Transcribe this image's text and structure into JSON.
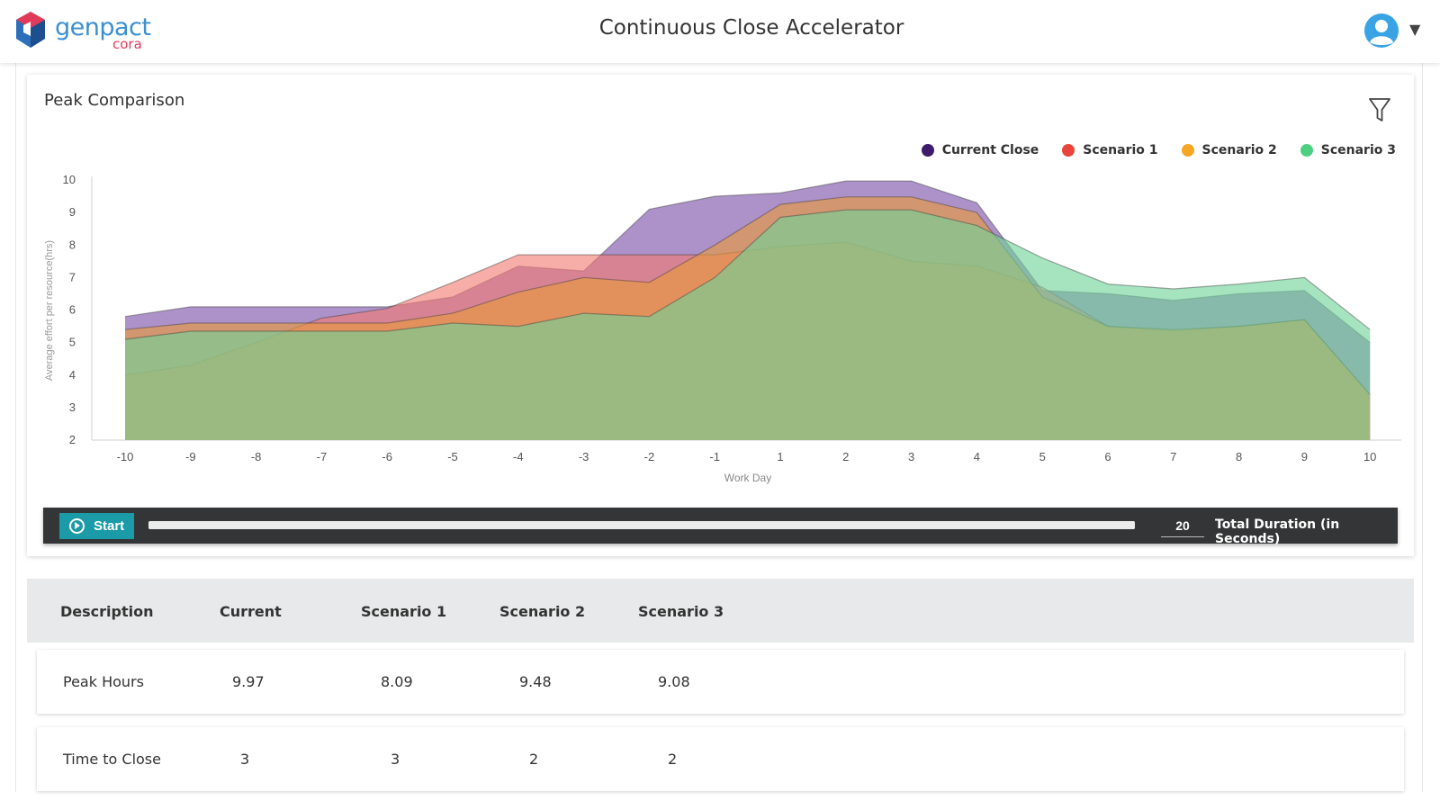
{
  "header": {
    "brand": "genpact",
    "brand_sub": "cora",
    "title": "Continuous Close Accelerator"
  },
  "icons": {
    "logo": "genpact-logo-icon",
    "user": "user-avatar-icon",
    "caret": "caret-down-icon",
    "filter": "filter-icon",
    "play": "play-icon"
  },
  "panel": {
    "title": "Peak Comparison"
  },
  "player": {
    "start_label": "Start",
    "duration_value": "20",
    "duration_label": "Total Duration (in Seconds)",
    "progress": 1.0
  },
  "table": {
    "headers": [
      "Description",
      "Current",
      "Scenario 1",
      "Scenario 2",
      "Scenario 3"
    ],
    "rows": [
      [
        "Peak Hours",
        "9.97",
        "8.09",
        "9.48",
        "9.08"
      ],
      [
        "Time to Close",
        "3",
        "3",
        "2",
        "2"
      ]
    ]
  },
  "colors": {
    "accent": "#1b9aa7",
    "current_close": "#3d1a6b",
    "scenario_1": "#e8453c",
    "scenario_2": "#f5a623",
    "scenario_3": "#4cd080"
  },
  "chart_data": {
    "type": "area",
    "title": "",
    "xlabel": "Work Day",
    "ylabel": "Average effort per resource(hrs)",
    "categories": [
      "-10",
      "-9",
      "-8",
      "-7",
      "-6",
      "-5",
      "-4",
      "-3",
      "-2",
      "-1",
      "1",
      "2",
      "3",
      "4",
      "5",
      "6",
      "7",
      "8",
      "9",
      "10"
    ],
    "ylim": [
      2,
      10
    ],
    "yticks": [
      2,
      3,
      4,
      5,
      6,
      7,
      8,
      9,
      10
    ],
    "legend_position": "top-right",
    "grid": false,
    "series": [
      {
        "name": "Current Close",
        "color": "#7b4fa8",
        "values": [
          5.8,
          6.1,
          6.1,
          6.1,
          6.1,
          6.4,
          7.35,
          7.2,
          9.1,
          9.5,
          9.6,
          9.97,
          9.97,
          9.3,
          6.6,
          6.5,
          6.3,
          6.5,
          6.6,
          5.0
        ]
      },
      {
        "name": "Scenario 1",
        "color": "#f27b73",
        "values": [
          4.0,
          4.3,
          5.0,
          5.75,
          6.05,
          6.85,
          7.7,
          7.7,
          7.7,
          7.7,
          7.95,
          8.09,
          7.5,
          7.35,
          6.7,
          5.5,
          5.35,
          5.5,
          5.7,
          3.4
        ]
      },
      {
        "name": "Scenario 2",
        "color": "#e89a3a",
        "values": [
          5.4,
          5.6,
          5.6,
          5.6,
          5.6,
          5.9,
          6.55,
          7.0,
          6.85,
          8.0,
          9.25,
          9.48,
          9.48,
          9.0,
          6.4,
          5.5,
          5.4,
          5.5,
          5.7,
          3.4
        ]
      },
      {
        "name": "Scenario 3",
        "color": "#6fd39a",
        "values": [
          5.1,
          5.35,
          5.35,
          5.35,
          5.35,
          5.6,
          5.5,
          5.9,
          5.8,
          7.0,
          8.85,
          9.08,
          9.08,
          8.6,
          7.6,
          6.8,
          6.65,
          6.8,
          7.0,
          5.4
        ]
      }
    ]
  }
}
